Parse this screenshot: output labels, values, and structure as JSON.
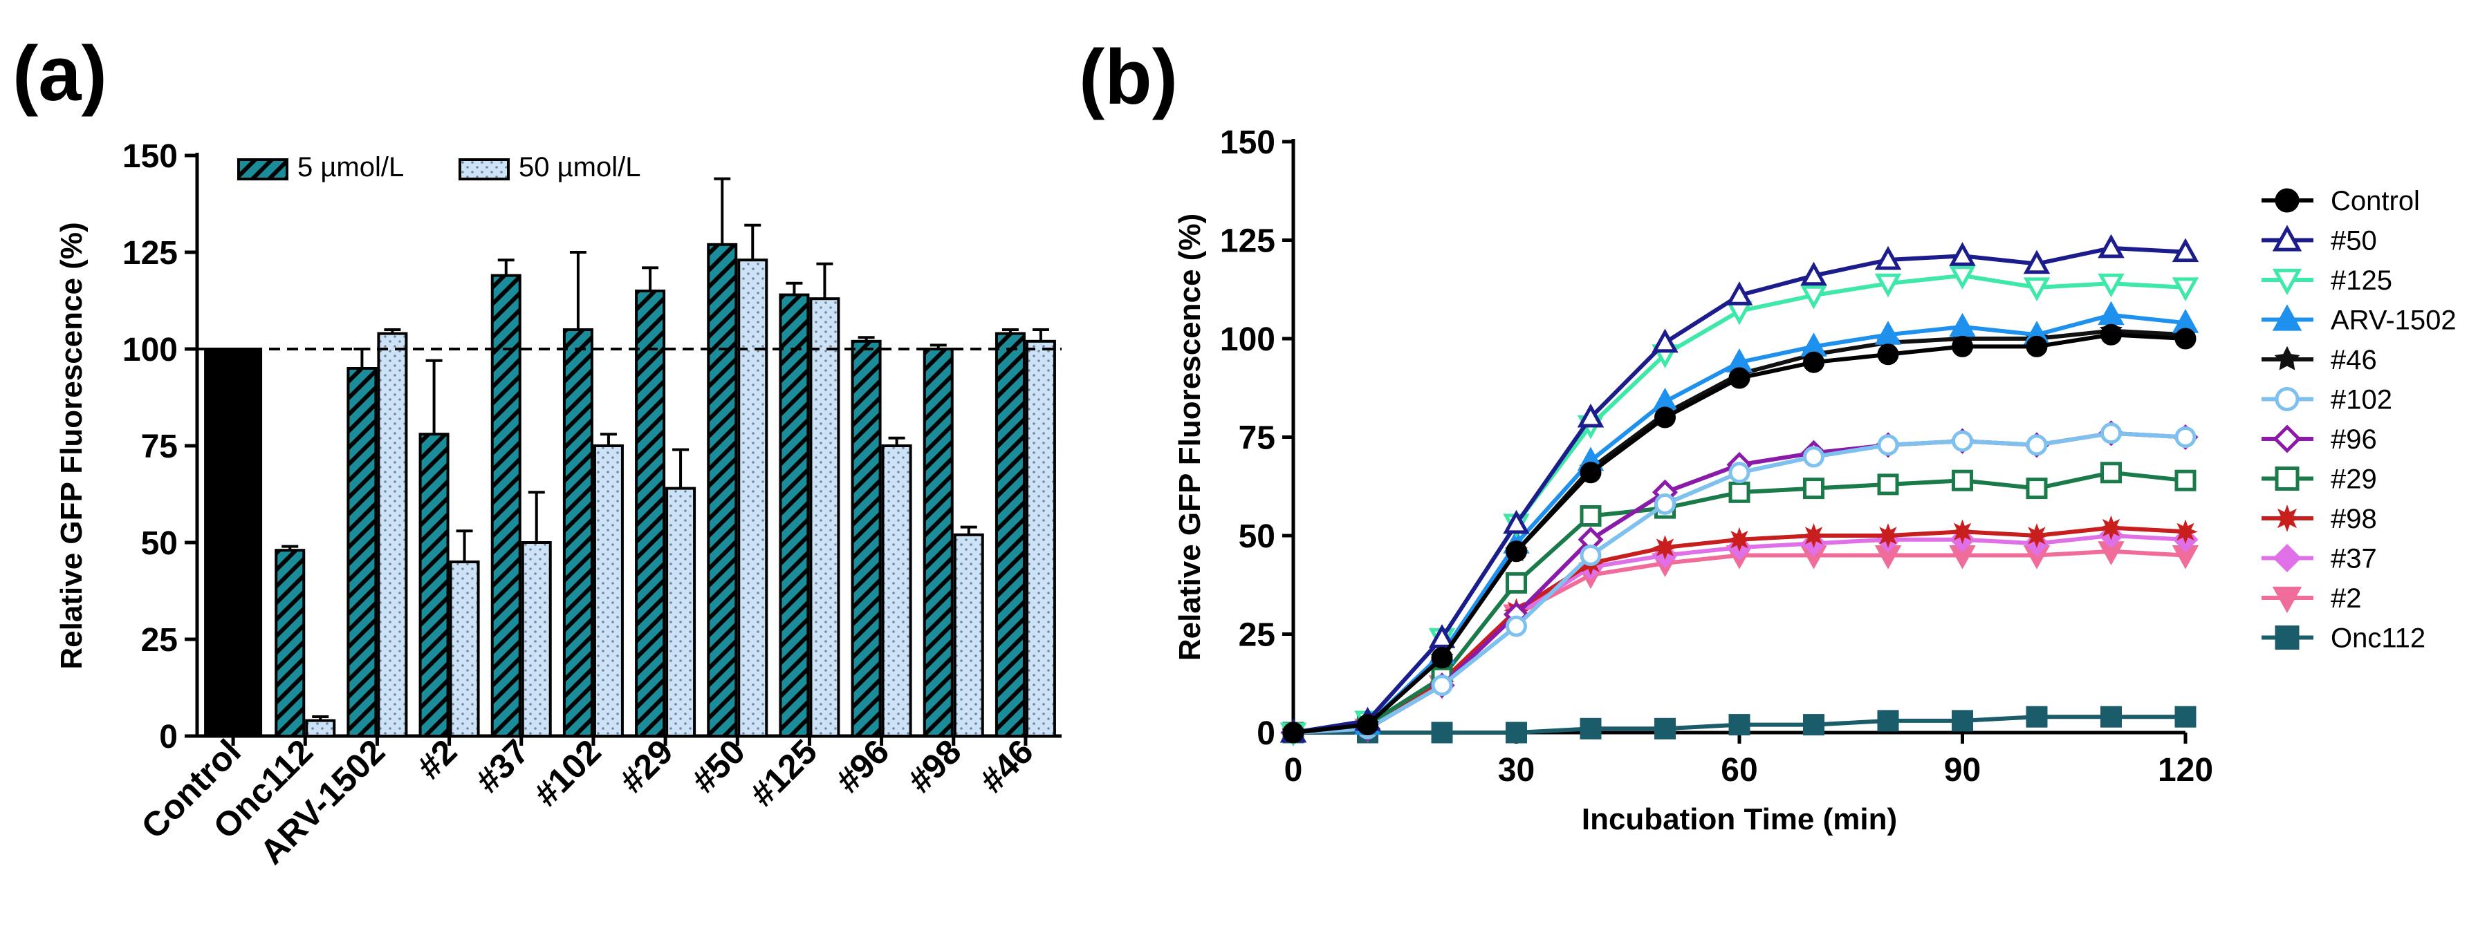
{
  "panels": {
    "a_label": "(a)",
    "b_label": "(b)"
  },
  "colors": {
    "teal": "#1a8c9a",
    "light_blue": "#cde3f5",
    "black": "#000000"
  },
  "chart_data": [
    {
      "type": "bar",
      "panel": "(a)",
      "title": "",
      "xlabel": "",
      "ylabel": "Relative GFP Fluorescence  (%)",
      "ylim": [
        0,
        150
      ],
      "yticks": [
        "0",
        "25",
        "50",
        "75",
        "100",
        "125",
        "150"
      ],
      "reference_line": 100,
      "categories": [
        "Control",
        "Onc112",
        "ARV-1502",
        "#2",
        "#37",
        "#102",
        "#29",
        "#50",
        "#125",
        "#96",
        "#98",
        "#46"
      ],
      "control": {
        "name": "Control",
        "value": 100,
        "color": "#000000"
      },
      "legend": [
        "5 µmol/L",
        "50 µmol/L"
      ],
      "series": [
        {
          "name": "5 µmol/L",
          "pattern": "hatched",
          "color": "#1a8c9a",
          "values": [
            null,
            48,
            95,
            78,
            119,
            105,
            115,
            127,
            114,
            102,
            100,
            104
          ],
          "errors": [
            null,
            1,
            5,
            19,
            4,
            20,
            6,
            17,
            3,
            1,
            1,
            1
          ]
        },
        {
          "name": "50 µmol/L",
          "pattern": "dotted",
          "color": "#cde3f5",
          "values": [
            null,
            4,
            104,
            45,
            50,
            75,
            64,
            123,
            113,
            75,
            52,
            102
          ],
          "errors": [
            null,
            1,
            1,
            8,
            13,
            3,
            10,
            9,
            9,
            2,
            2,
            3
          ]
        }
      ]
    },
    {
      "type": "line",
      "panel": "(b)",
      "title": "",
      "xlabel": "Incubation Time (min)",
      "ylabel": "Relative GFP Fluorescence (%)",
      "xlim": [
        0,
        120
      ],
      "ylim": [
        0,
        150
      ],
      "xticks": [
        "0",
        "30",
        "60",
        "90",
        "120"
      ],
      "yticks": [
        "0",
        "25",
        "50",
        "75",
        "100",
        "125",
        "150"
      ],
      "x": [
        0,
        10,
        20,
        30,
        40,
        50,
        60,
        70,
        80,
        90,
        100,
        110,
        120
      ],
      "series": [
        {
          "name": "Control",
          "color": "#000000",
          "marker": "circle",
          "fill": "filled",
          "values": [
            0,
            2,
            19,
            46,
            66,
            80,
            90,
            94,
            96,
            98,
            98,
            101,
            100
          ]
        },
        {
          "name": "#50",
          "color": "#1c1c8c",
          "marker": "triangle-up",
          "fill": "open",
          "values": [
            0,
            3,
            24,
            53,
            80,
            99,
            111,
            116,
            120,
            121,
            119,
            123,
            122
          ]
        },
        {
          "name": "#125",
          "color": "#3de8a8",
          "marker": "triangle-down",
          "fill": "open",
          "values": [
            0,
            3,
            24,
            53,
            78,
            96,
            107,
            111,
            114,
            116,
            113,
            114,
            113
          ]
        },
        {
          "name": "ARV-1502",
          "color": "#1e90ee",
          "marker": "triangle-up",
          "fill": "filled",
          "values": [
            0,
            2,
            20,
            48,
            69,
            84,
            94,
            98,
            101,
            103,
            101,
            106,
            104
          ]
        },
        {
          "name": "#46",
          "color": "#111111",
          "marker": "star",
          "fill": "filled",
          "values": [
            0,
            2,
            19,
            46,
            67,
            81,
            91,
            96,
            99,
            100,
            100,
            102,
            101
          ]
        },
        {
          "name": "#102",
          "color": "#7ec0ee",
          "marker": "circle",
          "fill": "open",
          "values": [
            0,
            1,
            12,
            27,
            45,
            58,
            66,
            70,
            73,
            74,
            73,
            76,
            75
          ]
        },
        {
          "name": "#96",
          "color": "#8a1aa8",
          "marker": "diamond",
          "fill": "open",
          "values": [
            0,
            1,
            12,
            30,
            49,
            61,
            68,
            71,
            73,
            74,
            73,
            76,
            75
          ]
        },
        {
          "name": "#29",
          "color": "#1a7a4a",
          "marker": "square",
          "fill": "open",
          "values": [
            0,
            2,
            14,
            38,
            55,
            57,
            61,
            62,
            63,
            64,
            62,
            66,
            64
          ]
        },
        {
          "name": "#98",
          "color": "#c81e1e",
          "marker": "star",
          "fill": "filled",
          "values": [
            0,
            1,
            13,
            31,
            43,
            47,
            49,
            50,
            50,
            51,
            50,
            52,
            51
          ]
        },
        {
          "name": "#37",
          "color": "#e070e8",
          "marker": "diamond",
          "fill": "filled",
          "values": [
            0,
            1,
            12,
            30,
            42,
            45,
            47,
            48,
            49,
            49,
            48,
            50,
            49
          ]
        },
        {
          "name": "#2",
          "color": "#f06c9a",
          "marker": "triangle-down",
          "fill": "filled",
          "values": [
            0,
            1,
            12,
            30,
            40,
            43,
            45,
            45,
            45,
            45,
            45,
            46,
            45
          ]
        },
        {
          "name": "Onc112",
          "color": "#1a5c6a",
          "marker": "square",
          "fill": "filled",
          "values": [
            0,
            0,
            0,
            0,
            1,
            1,
            2,
            2,
            3,
            3,
            4,
            4,
            4
          ]
        }
      ]
    }
  ]
}
